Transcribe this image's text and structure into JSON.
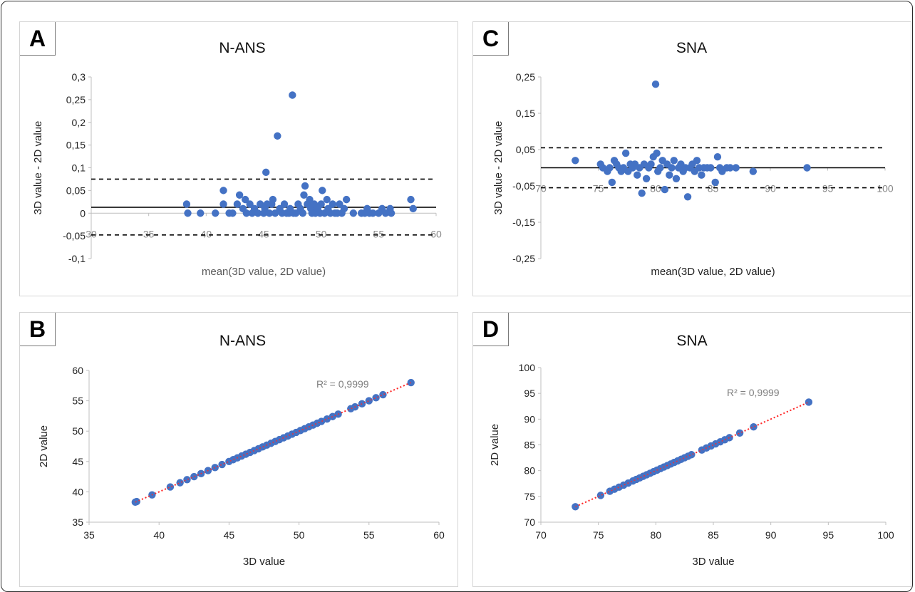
{
  "chart_data": [
    {
      "panel": "A",
      "type": "scatter",
      "title": "N-ANS",
      "xlabel": "mean(3D value, 2D value)",
      "ylabel": "3D value - 2D value",
      "xlim": [
        30,
        60
      ],
      "ylim": [
        -0.1,
        0.3
      ],
      "xticks": [
        "30",
        "35",
        "40",
        "45",
        "50",
        "55",
        "60"
      ],
      "yticks": [
        "0,3",
        "0,25",
        "0,2",
        "0,15",
        "0,1",
        "0,05",
        "0",
        "-0,05",
        "-0,1"
      ],
      "mean_line": 0.013,
      "limits_of_agreement": [
        0.075,
        -0.048
      ],
      "grid": false,
      "points": [
        [
          38.3,
          0.02
        ],
        [
          38.4,
          0
        ],
        [
          39.5,
          0
        ],
        [
          40.8,
          0
        ],
        [
          41.5,
          0.05
        ],
        [
          41.5,
          0.02
        ],
        [
          42.0,
          0
        ],
        [
          42.3,
          0
        ],
        [
          42.7,
          0.02
        ],
        [
          42.9,
          0.04
        ],
        [
          43.2,
          0.01
        ],
        [
          43.4,
          0.03
        ],
        [
          43.5,
          0
        ],
        [
          43.8,
          0.02
        ],
        [
          44.0,
          0
        ],
        [
          44.2,
          0.01
        ],
        [
          44.5,
          0
        ],
        [
          44.7,
          0.02
        ],
        [
          45.0,
          0
        ],
        [
          45.1,
          0.01
        ],
        [
          45.2,
          0.09
        ],
        [
          45.3,
          0.02
        ],
        [
          45.5,
          0
        ],
        [
          45.7,
          0.02
        ],
        [
          45.8,
          0.03
        ],
        [
          46.0,
          0
        ],
        [
          46.2,
          0.17
        ],
        [
          46.4,
          0.01
        ],
        [
          46.6,
          0
        ],
        [
          46.8,
          0.02
        ],
        [
          47.0,
          0
        ],
        [
          47.2,
          0
        ],
        [
          47.3,
          0.01
        ],
        [
          47.5,
          0.26
        ],
        [
          47.6,
          0
        ],
        [
          47.8,
          0
        ],
        [
          48.0,
          0.02
        ],
        [
          48.2,
          0.01
        ],
        [
          48.4,
          0
        ],
        [
          48.5,
          0.04
        ],
        [
          48.6,
          0.06
        ],
        [
          48.8,
          0.02
        ],
        [
          49.0,
          0.03
        ],
        [
          49.1,
          0.01
        ],
        [
          49.2,
          0
        ],
        [
          49.4,
          0.02
        ],
        [
          49.5,
          0
        ],
        [
          49.7,
          0.01
        ],
        [
          49.9,
          0
        ],
        [
          50.0,
          0.02
        ],
        [
          50.1,
          0.05
        ],
        [
          50.3,
          0
        ],
        [
          50.5,
          0.03
        ],
        [
          50.6,
          0.01
        ],
        [
          50.8,
          0
        ],
        [
          51.0,
          0.02
        ],
        [
          51.2,
          0
        ],
        [
          51.4,
          0
        ],
        [
          51.6,
          0.02
        ],
        [
          51.8,
          0
        ],
        [
          52.0,
          0.01
        ],
        [
          52.2,
          0.03
        ],
        [
          52.8,
          0
        ],
        [
          53.5,
          0
        ],
        [
          53.8,
          0
        ],
        [
          54.0,
          0.01
        ],
        [
          54.2,
          0
        ],
        [
          54.5,
          0
        ],
        [
          55.0,
          0
        ],
        [
          55.3,
          0.01
        ],
        [
          55.6,
          0
        ],
        [
          56.0,
          0.01
        ],
        [
          56.1,
          0
        ],
        [
          57.8,
          0.03
        ],
        [
          58.0,
          0.01
        ]
      ]
    },
    {
      "panel": "C",
      "type": "scatter",
      "title": "SNA",
      "xlabel": "mean(3D value, 2D value)",
      "ylabel": "3D value - 2D value",
      "xlim": [
        70,
        100
      ],
      "ylim": [
        -0.25,
        0.25
      ],
      "xticks": [
        "70",
        "75",
        "80",
        "85",
        "90",
        "95",
        "100"
      ],
      "yticks": [
        "0,25",
        "0,15",
        "0,05",
        "-0,05",
        "-0,15",
        "-0,25"
      ],
      "mean_line": 0.0,
      "limits_of_agreement": [
        0.055,
        -0.055
      ],
      "grid": false,
      "points": [
        [
          73.0,
          0.02
        ],
        [
          75.2,
          0.01
        ],
        [
          75.4,
          0
        ],
        [
          75.8,
          -0.01
        ],
        [
          76.0,
          0
        ],
        [
          76.2,
          -0.04
        ],
        [
          76.4,
          0.02
        ],
        [
          76.6,
          0.01
        ],
        [
          76.8,
          0
        ],
        [
          77.0,
          -0.01
        ],
        [
          77.2,
          0
        ],
        [
          77.4,
          0.04
        ],
        [
          77.6,
          -0.01
        ],
        [
          77.8,
          0.01
        ],
        [
          78.0,
          0
        ],
        [
          78.2,
          0.01
        ],
        [
          78.4,
          -0.02
        ],
        [
          78.6,
          0
        ],
        [
          78.8,
          -0.07
        ],
        [
          79.0,
          0.01
        ],
        [
          79.2,
          -0.03
        ],
        [
          79.4,
          0
        ],
        [
          79.6,
          0.01
        ],
        [
          79.8,
          0.03
        ],
        [
          80.0,
          0.23
        ],
        [
          80.1,
          0.04
        ],
        [
          80.2,
          -0.01
        ],
        [
          80.4,
          0
        ],
        [
          80.6,
          0.02
        ],
        [
          80.8,
          -0.06
        ],
        [
          81.0,
          0.01
        ],
        [
          81.2,
          -0.02
        ],
        [
          81.4,
          0
        ],
        [
          81.6,
          0.02
        ],
        [
          81.8,
          -0.03
        ],
        [
          82.0,
          0
        ],
        [
          82.2,
          0.01
        ],
        [
          82.4,
          -0.01
        ],
        [
          82.6,
          0
        ],
        [
          82.8,
          -0.08
        ],
        [
          83.0,
          0
        ],
        [
          83.2,
          0.01
        ],
        [
          83.4,
          -0.01
        ],
        [
          83.6,
          0.02
        ],
        [
          83.8,
          0
        ],
        [
          84.0,
          -0.02
        ],
        [
          84.2,
          0
        ],
        [
          84.5,
          0
        ],
        [
          84.8,
          0
        ],
        [
          85.2,
          -0.04
        ],
        [
          85.4,
          0.03
        ],
        [
          85.6,
          0
        ],
        [
          85.8,
          -0.01
        ],
        [
          86.2,
          0
        ],
        [
          86.5,
          0
        ],
        [
          87.0,
          0
        ],
        [
          88.5,
          -0.01
        ],
        [
          93.2,
          0
        ]
      ]
    },
    {
      "panel": "B",
      "type": "scatter",
      "title": "N-ANS",
      "xlabel": "3D value",
      "ylabel": "2D value",
      "xlim": [
        35,
        60
      ],
      "ylim": [
        35,
        60
      ],
      "xticks": [
        "35",
        "40",
        "45",
        "50",
        "55",
        "60"
      ],
      "yticks": [
        "60",
        "55",
        "50",
        "45",
        "40",
        "35"
      ],
      "trendline": {
        "slope": 1,
        "intercept": 0,
        "color": "#ff2a2a",
        "style": "dotted"
      },
      "annotation": "R² = 0,9999",
      "grid": false,
      "points": [
        [
          38.3,
          38.3
        ],
        [
          38.4,
          38.4
        ],
        [
          39.5,
          39.5
        ],
        [
          40.8,
          40.8
        ],
        [
          41.5,
          41.5
        ],
        [
          42.0,
          42.0
        ],
        [
          42.5,
          42.5
        ],
        [
          43.0,
          43.0
        ],
        [
          43.5,
          43.5
        ],
        [
          44.0,
          44.0
        ],
        [
          44.5,
          44.5
        ],
        [
          45.0,
          45.0
        ],
        [
          45.3,
          45.3
        ],
        [
          45.6,
          45.6
        ],
        [
          45.9,
          45.9
        ],
        [
          46.2,
          46.2
        ],
        [
          46.5,
          46.5
        ],
        [
          46.8,
          46.8
        ],
        [
          47.1,
          47.1
        ],
        [
          47.4,
          47.4
        ],
        [
          47.7,
          47.7
        ],
        [
          48.0,
          48.0
        ],
        [
          48.3,
          48.3
        ],
        [
          48.6,
          48.6
        ],
        [
          48.9,
          48.9
        ],
        [
          49.2,
          49.2
        ],
        [
          49.5,
          49.5
        ],
        [
          49.8,
          49.8
        ],
        [
          50.1,
          50.1
        ],
        [
          50.4,
          50.4
        ],
        [
          50.7,
          50.7
        ],
        [
          51.0,
          51.0
        ],
        [
          51.3,
          51.3
        ],
        [
          51.6,
          51.6
        ],
        [
          52.0,
          52.0
        ],
        [
          52.4,
          52.4
        ],
        [
          52.8,
          52.8
        ],
        [
          53.7,
          53.7
        ],
        [
          54.0,
          54.0
        ],
        [
          54.5,
          54.5
        ],
        [
          55.0,
          55.0
        ],
        [
          55.5,
          55.5
        ],
        [
          56.0,
          56.0
        ],
        [
          58.0,
          58.0
        ]
      ]
    },
    {
      "panel": "D",
      "type": "scatter",
      "title": "SNA",
      "xlabel": "3D value",
      "ylabel": "2D value",
      "xlim": [
        70,
        100
      ],
      "ylim": [
        70,
        100
      ],
      "xticks": [
        "70",
        "75",
        "80",
        "85",
        "90",
        "95",
        "100"
      ],
      "yticks": [
        "100",
        "95",
        "90",
        "85",
        "80",
        "75",
        "70"
      ],
      "trendline": {
        "slope": 1,
        "intercept": 0,
        "color": "#ff2a2a",
        "style": "dotted"
      },
      "annotation": "R² = 0,9999",
      "grid": false,
      "points": [
        [
          73.0,
          73.0
        ],
        [
          75.2,
          75.2
        ],
        [
          76.0,
          76.0
        ],
        [
          76.4,
          76.4
        ],
        [
          76.8,
          76.8
        ],
        [
          77.2,
          77.2
        ],
        [
          77.6,
          77.6
        ],
        [
          78.0,
          78.0
        ],
        [
          78.3,
          78.3
        ],
        [
          78.6,
          78.6
        ],
        [
          78.9,
          78.9
        ],
        [
          79.2,
          79.2
        ],
        [
          79.5,
          79.5
        ],
        [
          79.8,
          79.8
        ],
        [
          80.1,
          80.1
        ],
        [
          80.4,
          80.4
        ],
        [
          80.7,
          80.7
        ],
        [
          81.0,
          81.0
        ],
        [
          81.3,
          81.3
        ],
        [
          81.6,
          81.6
        ],
        [
          81.9,
          81.9
        ],
        [
          82.2,
          82.2
        ],
        [
          82.5,
          82.5
        ],
        [
          82.8,
          82.8
        ],
        [
          83.1,
          83.1
        ],
        [
          84.0,
          84.0
        ],
        [
          84.4,
          84.4
        ],
        [
          84.8,
          84.8
        ],
        [
          85.2,
          85.2
        ],
        [
          85.6,
          85.6
        ],
        [
          86.0,
          86.0
        ],
        [
          86.4,
          86.4
        ],
        [
          87.3,
          87.3
        ],
        [
          88.5,
          88.5
        ],
        [
          93.3,
          93.3
        ]
      ]
    }
  ],
  "colors": {
    "point": "#4472c4",
    "trendline": "#ff2a2a",
    "line": "#000000",
    "axis": "#bfbfbf",
    "text": "#222222",
    "xlabel_muted": "#595959"
  }
}
